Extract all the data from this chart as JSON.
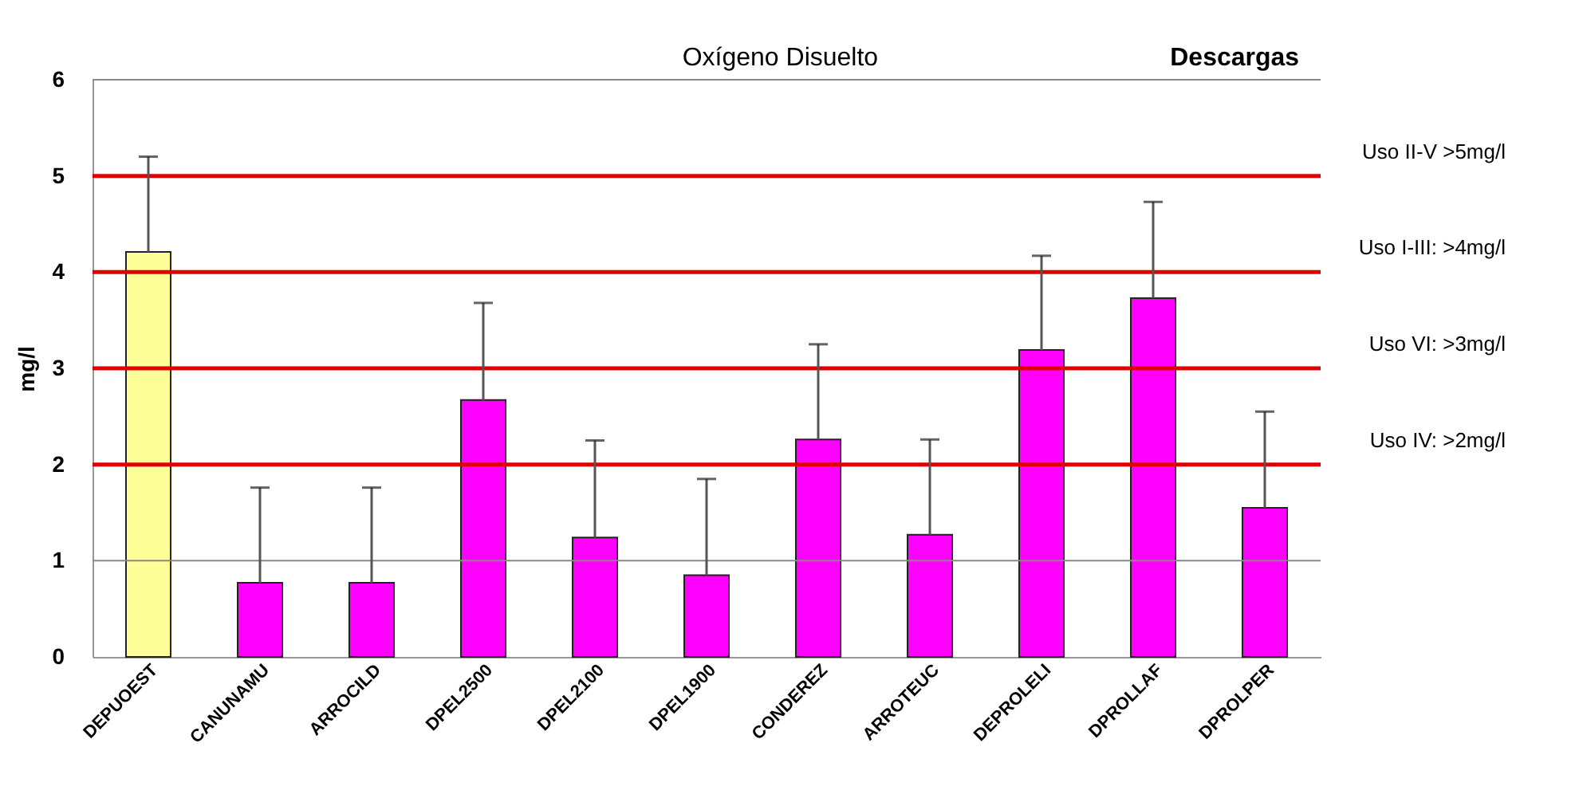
{
  "chart_data": {
    "type": "bar",
    "title": "Oxígeno Disuelto",
    "ylabel": "mg/l",
    "annotations": [
      "Descargas"
    ],
    "categories": [
      "DEPUOEST",
      "CANUNAMU",
      "ARROCILD",
      "DPEL2500",
      "DPEL2100",
      "DPEL1900",
      "CONDEREZ",
      "ARROTEUC",
      "DEPROLELI",
      "DPROLLAF",
      "DPROLPER"
    ],
    "values": [
      4.21,
      0.77,
      0.77,
      2.67,
      1.24,
      0.85,
      2.26,
      1.27,
      3.19,
      3.73,
      1.55
    ],
    "errors": [
      [
        4.21,
        5.2
      ],
      [
        0.77,
        1.76
      ],
      [
        0.77,
        1.76
      ],
      [
        2.67,
        3.68
      ],
      [
        1.24,
        2.25
      ],
      [
        0.85,
        1.85
      ],
      [
        2.26,
        3.25
      ],
      [
        1.27,
        2.26
      ],
      [
        3.19,
        4.17
      ],
      [
        3.73,
        4.73
      ],
      [
        1.55,
        2.55
      ]
    ],
    "colors": [
      "#ffff99",
      "#ff00ff",
      "#ff00ff",
      "#ff00ff",
      "#ff00ff",
      "#ff00ff",
      "#ff00ff",
      "#ff00ff",
      "#ff00ff",
      "#ff00ff",
      "#ff00ff"
    ],
    "ylim": [
      0,
      6
    ],
    "yticks": [
      0,
      1,
      2,
      3,
      4,
      5,
      6
    ],
    "ref_lines": [
      {
        "axis": "y",
        "value": 1,
        "color": "#888888"
      },
      {
        "axis": "y",
        "value": 6,
        "color": "#888888"
      },
      {
        "axis": "y",
        "value": 5,
        "label": "Uso II-V >5mg/l",
        "color": "#e00000"
      },
      {
        "axis": "y",
        "value": 4,
        "label": "Uso I-III: >4mg/l",
        "color": "#e00000"
      },
      {
        "axis": "y",
        "value": 3,
        "label": "Uso VI: >3mg/l",
        "color": "#e00000"
      },
      {
        "axis": "y",
        "value": 2,
        "label": "Uso IV: >2mg/l",
        "color": "#e00000"
      }
    ]
  }
}
